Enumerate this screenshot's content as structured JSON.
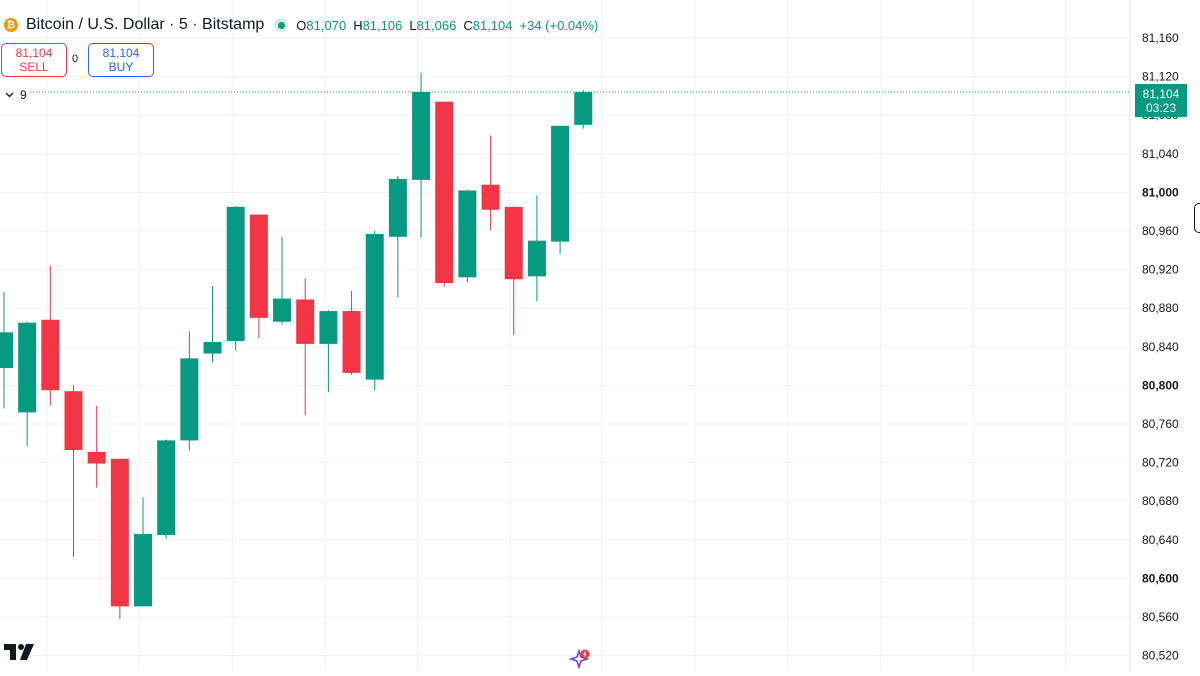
{
  "header": {
    "logo_glyph": "₿",
    "symbol_title": "Bitcoin / U.S. Dollar · 5 · Bitstamp",
    "ohlc": [
      {
        "key": "O",
        "value": "81,070"
      },
      {
        "key": "H",
        "value": "81,106"
      },
      {
        "key": "L",
        "value": "81,066"
      },
      {
        "key": "C",
        "value": "81,104"
      }
    ],
    "change": "+34 (+0.04%)"
  },
  "trade": {
    "sell_price": "81,104",
    "sell_label": "SELL",
    "spread": "0",
    "buy_price": "81,104",
    "buy_label": "BUY"
  },
  "indicators": {
    "count": "9"
  },
  "price_tag": {
    "price": "81,104",
    "countdown": "03:23"
  },
  "colors": {
    "up": "#089981",
    "down": "#f23645",
    "grid": "#f0f3fa",
    "axis_text": "#131722"
  },
  "icons": [
    "bitcoin-logo",
    "status-dot",
    "chevron-down-icon",
    "tradingview-logo",
    "sparkle-icon"
  ],
  "chart_data": {
    "type": "candlestick",
    "ylim": [
      80500,
      81180
    ],
    "y_ticks": [
      {
        "label": "81,160",
        "value": 81160,
        "bold": false
      },
      {
        "label": "81,120",
        "value": 81120,
        "bold": false
      },
      {
        "label": "81,080",
        "value": 81080,
        "bold": false
      },
      {
        "label": "81,040",
        "value": 81040,
        "bold": false
      },
      {
        "label": "81,000",
        "value": 81000,
        "bold": true
      },
      {
        "label": "80,960",
        "value": 80960,
        "bold": false
      },
      {
        "label": "80,920",
        "value": 80920,
        "bold": false
      },
      {
        "label": "80,880",
        "value": 80880,
        "bold": false
      },
      {
        "label": "80,840",
        "value": 80840,
        "bold": false
      },
      {
        "label": "80,800",
        "value": 80800,
        "bold": true
      },
      {
        "label": "80,760",
        "value": 80760,
        "bold": false
      },
      {
        "label": "80,720",
        "value": 80720,
        "bold": false
      },
      {
        "label": "80,680",
        "value": 80680,
        "bold": false
      },
      {
        "label": "80,640",
        "value": 80640,
        "bold": false
      },
      {
        "label": "80,600",
        "value": 80600,
        "bold": true
      },
      {
        "label": "80,560",
        "value": 80560,
        "bold": false
      },
      {
        "label": "80,520",
        "value": 80520,
        "bold": false
      }
    ],
    "last_price": 81104,
    "candles": [
      {
        "o": 80818,
        "h": 80897,
        "l": 80776,
        "c": 80855
      },
      {
        "o": 80772,
        "h": 80866,
        "l": 80737,
        "c": 80865
      },
      {
        "o": 80868,
        "h": 80924,
        "l": 80779,
        "c": 80795
      },
      {
        "o": 80794,
        "h": 80800,
        "l": 80622,
        "c": 80733
      },
      {
        "o": 80731,
        "h": 80779,
        "l": 80694,
        "c": 80719
      },
      {
        "o": 80724,
        "h": 80724,
        "l": 80558,
        "c": 80571
      },
      {
        "o": 80571,
        "h": 80684,
        "l": 80571,
        "c": 80646
      },
      {
        "o": 80645,
        "h": 80744,
        "l": 80641,
        "c": 80743
      },
      {
        "o": 80743,
        "h": 80856,
        "l": 80733,
        "c": 80828
      },
      {
        "o": 80833,
        "h": 80903,
        "l": 80824,
        "c": 80845
      },
      {
        "o": 80846,
        "h": 80986,
        "l": 80836,
        "c": 80985
      },
      {
        "o": 80977,
        "h": 80977,
        "l": 80849,
        "c": 80870
      },
      {
        "o": 80866,
        "h": 80954,
        "l": 80863,
        "c": 80890
      },
      {
        "o": 80889,
        "h": 80911,
        "l": 80769,
        "c": 80843
      },
      {
        "o": 80843,
        "h": 80878,
        "l": 80793,
        "c": 80877
      },
      {
        "o": 80877,
        "h": 80898,
        "l": 80811,
        "c": 80813
      },
      {
        "o": 80806,
        "h": 80960,
        "l": 80795,
        "c": 80957
      },
      {
        "o": 80954,
        "h": 81017,
        "l": 80891,
        "c": 81014
      },
      {
        "o": 81013,
        "h": 81124,
        "l": 80953,
        "c": 81104
      },
      {
        "o": 81094,
        "h": 81094,
        "l": 80902,
        "c": 80906
      },
      {
        "o": 80912,
        "h": 81003,
        "l": 80907,
        "c": 81002
      },
      {
        "o": 81008,
        "h": 81059,
        "l": 80961,
        "c": 80982
      },
      {
        "o": 80985,
        "h": 80985,
        "l": 80852,
        "c": 80910
      },
      {
        "o": 80913,
        "h": 80997,
        "l": 80887,
        "c": 80950
      },
      {
        "o": 80949,
        "h": 81069,
        "l": 80936,
        "c": 81069
      },
      {
        "o": 81070,
        "h": 81106,
        "l": 81066,
        "c": 81104
      }
    ]
  }
}
